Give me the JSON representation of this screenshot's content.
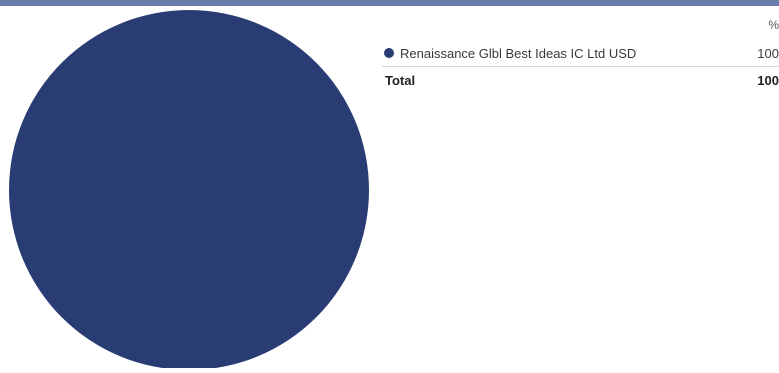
{
  "chart_data": {
    "type": "pie",
    "categories": [
      "Renaissance Glbl Best Ideas IC Ltd USD"
    ],
    "values": [
      100
    ],
    "colors": [
      "#2a3c74"
    ],
    "value_header": "%",
    "total_label": "Total",
    "total_value": "100"
  },
  "legend": {
    "pct_header": "%",
    "items": [
      {
        "label": "Renaissance Glbl Best Ideas IC Ltd USD",
        "value": "100",
        "color": "#2a3c74"
      }
    ],
    "total_label": "Total",
    "total_value": "100"
  },
  "colors": {
    "header_bar": "#6a7da8"
  }
}
